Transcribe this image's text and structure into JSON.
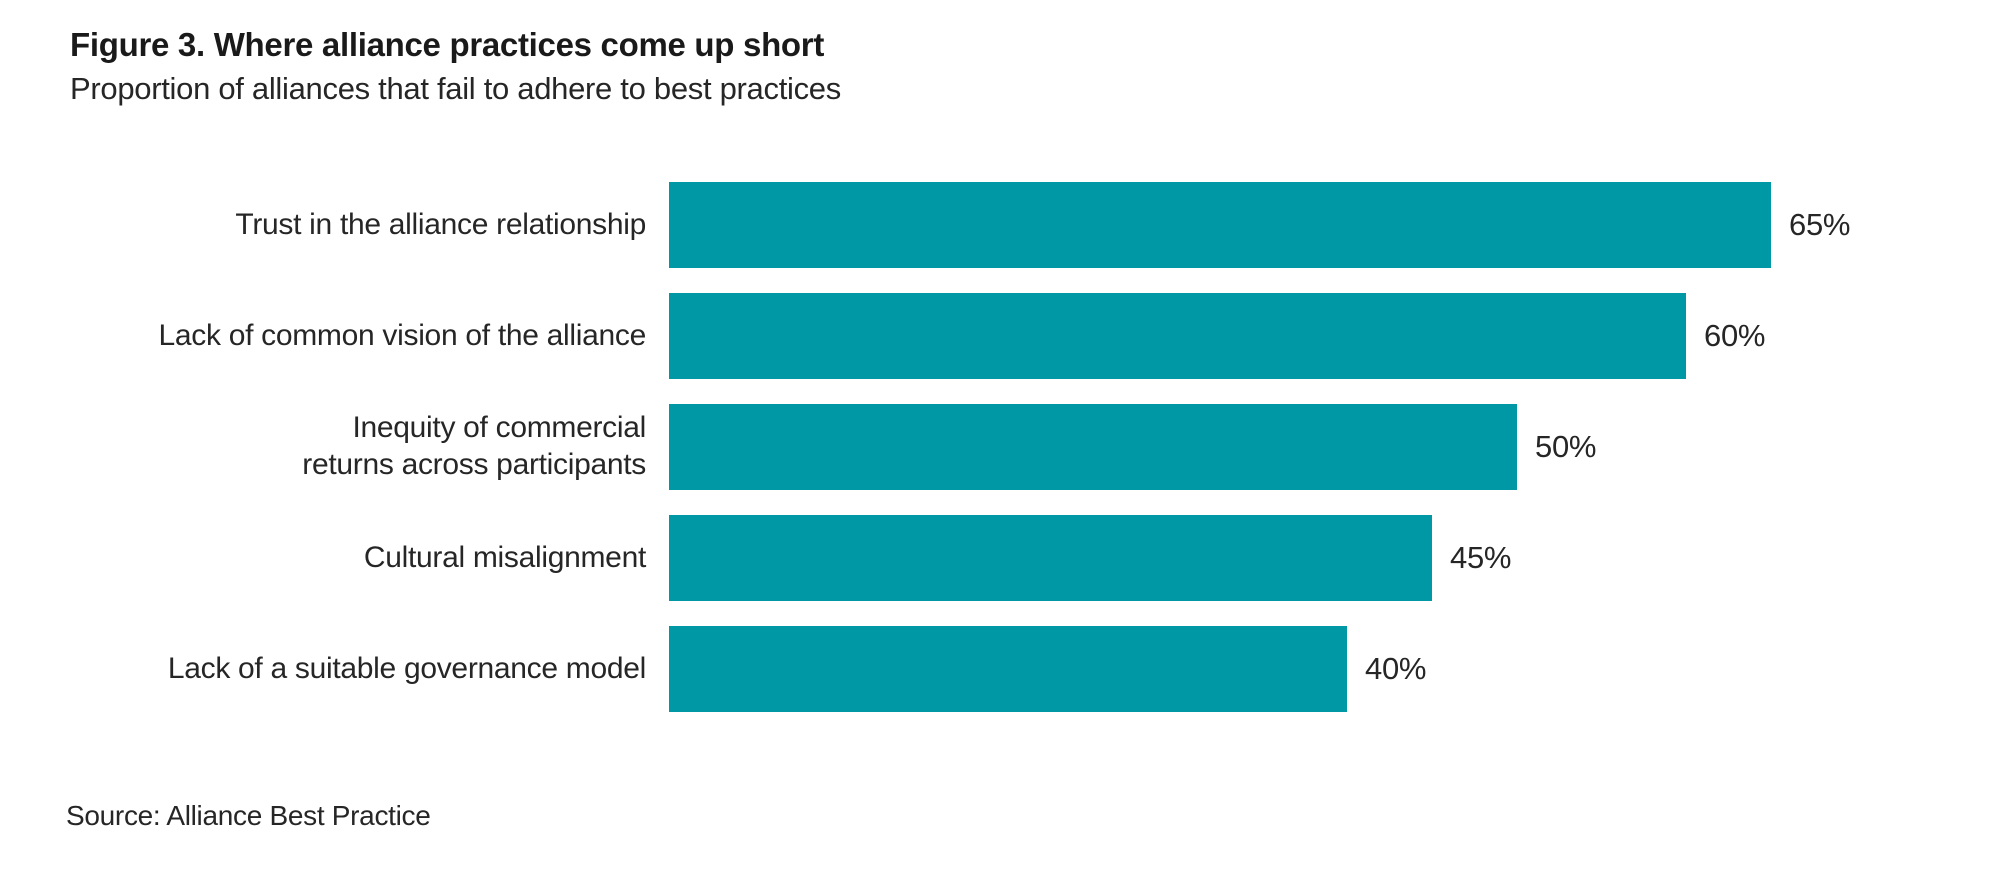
{
  "figure": {
    "title": "Figure 3. Where alliance practices come up short",
    "subtitle": "Proportion of alliances that fail to adhere to best practices",
    "source": "Source: Alliance Best Practice"
  },
  "colors": {
    "bar": "#0098a4",
    "title_text": "#1a1a1a",
    "body_text": "#262626",
    "background": "#ffffff"
  },
  "chart_data": {
    "type": "bar",
    "orientation": "horizontal",
    "title": "Figure 3. Where alliance practices come up short",
    "subtitle": "Proportion of alliances that fail to adhere to best practices",
    "categories": [
      "Trust in the alliance relationship",
      "Lack of common vision of the alliance",
      "Inequity of commercial\nreturns across participants",
      "Cultural misalignment",
      "Lack of a suitable governance model"
    ],
    "values": [
      65,
      60,
      50,
      45,
      40
    ],
    "value_labels": [
      "65%",
      "60%",
      "50%",
      "45%",
      "40%"
    ],
    "unit": "percent",
    "xlim": [
      0,
      65
    ],
    "xlabel": "",
    "ylabel": "",
    "grid": false,
    "legend": false,
    "axes_visible": false,
    "value_label_position": "right-of-bar",
    "bar_color": "#0098a4",
    "source": "Source: Alliance Best Practice"
  }
}
